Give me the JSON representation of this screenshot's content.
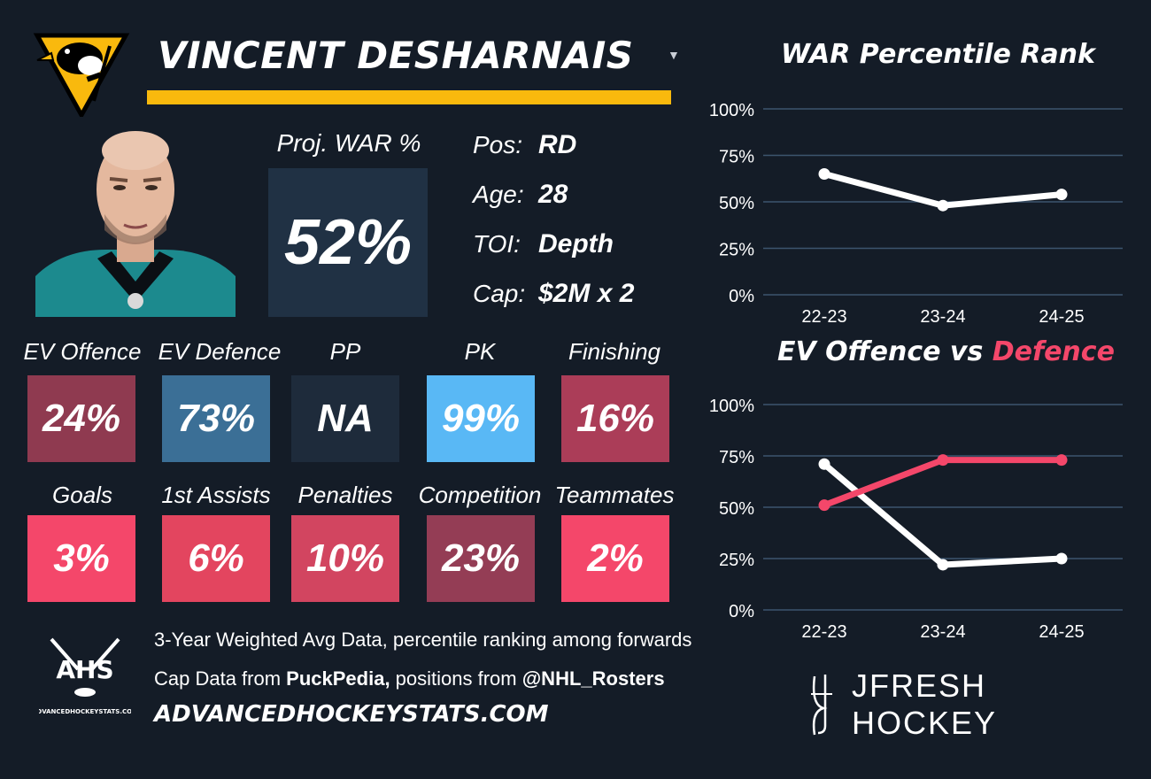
{
  "header": {
    "team_logo": "penguins-logo",
    "player_name": "VINCENT DESHARNAIS",
    "colors": {
      "accent": "#f9b90d",
      "background": "#141c27"
    }
  },
  "projection": {
    "label": "Proj. WAR %",
    "value": "52%"
  },
  "info": {
    "pos_label": "Pos:",
    "pos_value": "RD",
    "age_label": "Age:",
    "age_value": "28",
    "toi_label": "TOI:",
    "toi_value": "Depth",
    "cap_label": "Cap:",
    "cap_value": "$2M x 2"
  },
  "stats_row1": [
    {
      "label": "EV Offence",
      "value": "24%",
      "color": "#8f3a50"
    },
    {
      "label": "EV Defence",
      "value": "73%",
      "color": "#3b6f96"
    },
    {
      "label": "PP",
      "value": "NA",
      "color": "#1e2b3b"
    },
    {
      "label": "PK",
      "value": "99%",
      "color": "#59b8f5"
    },
    {
      "label": "Finishing",
      "value": "16%",
      "color": "#ab3d58"
    }
  ],
  "stats_row2": [
    {
      "label": "Goals",
      "value": "3%",
      "color": "#f4476a"
    },
    {
      "label": "1st Assists",
      "value": "6%",
      "color": "#e3455f"
    },
    {
      "label": "Penalties",
      "value": "10%",
      "color": "#d24560"
    },
    {
      "label": "Competition",
      "value": "23%",
      "color": "#943d55"
    },
    {
      "label": "Teammates",
      "value": "2%",
      "color": "#f4476a"
    }
  ],
  "footer": {
    "line1": "3-Year Weighted Avg Data, percentile ranking among forwards",
    "line2_prefix": "Cap Data from ",
    "line2_bold1": "PuckPedia,",
    "line2_mid": " positions from ",
    "line2_bold2": "@NHL_Rosters",
    "site": "ADVANCEDHOCKEYSTATS.COM",
    "ahs_logo_text": "AHS",
    "ahs_logo_sub": "ADVANCEDHOCKEYSTATS.COM",
    "brand": "JFRESH HOCKEY"
  },
  "chart_data": [
    {
      "type": "line",
      "title": "WAR Percentile Rank",
      "categories": [
        "22-23",
        "23-24",
        "24-25"
      ],
      "yticks": [
        "100%",
        "75%",
        "50%",
        "25%",
        "0%"
      ],
      "ylim": [
        0,
        100
      ],
      "grid": true,
      "series": [
        {
          "values": [
            65,
            48,
            54
          ],
          "color": "#ffffff"
        }
      ]
    },
    {
      "type": "line",
      "title_part1": "EV Offence vs ",
      "title_part2": "Defence",
      "categories": [
        "22-23",
        "23-24",
        "24-25"
      ],
      "yticks": [
        "100%",
        "75%",
        "50%",
        "25%",
        "0%"
      ],
      "ylim": [
        0,
        100
      ],
      "grid": true,
      "series": [
        {
          "values": [
            71,
            22,
            25
          ],
          "color": "#ffffff"
        },
        {
          "values": [
            51,
            73,
            73
          ],
          "color": "#f4476a"
        }
      ]
    }
  ]
}
